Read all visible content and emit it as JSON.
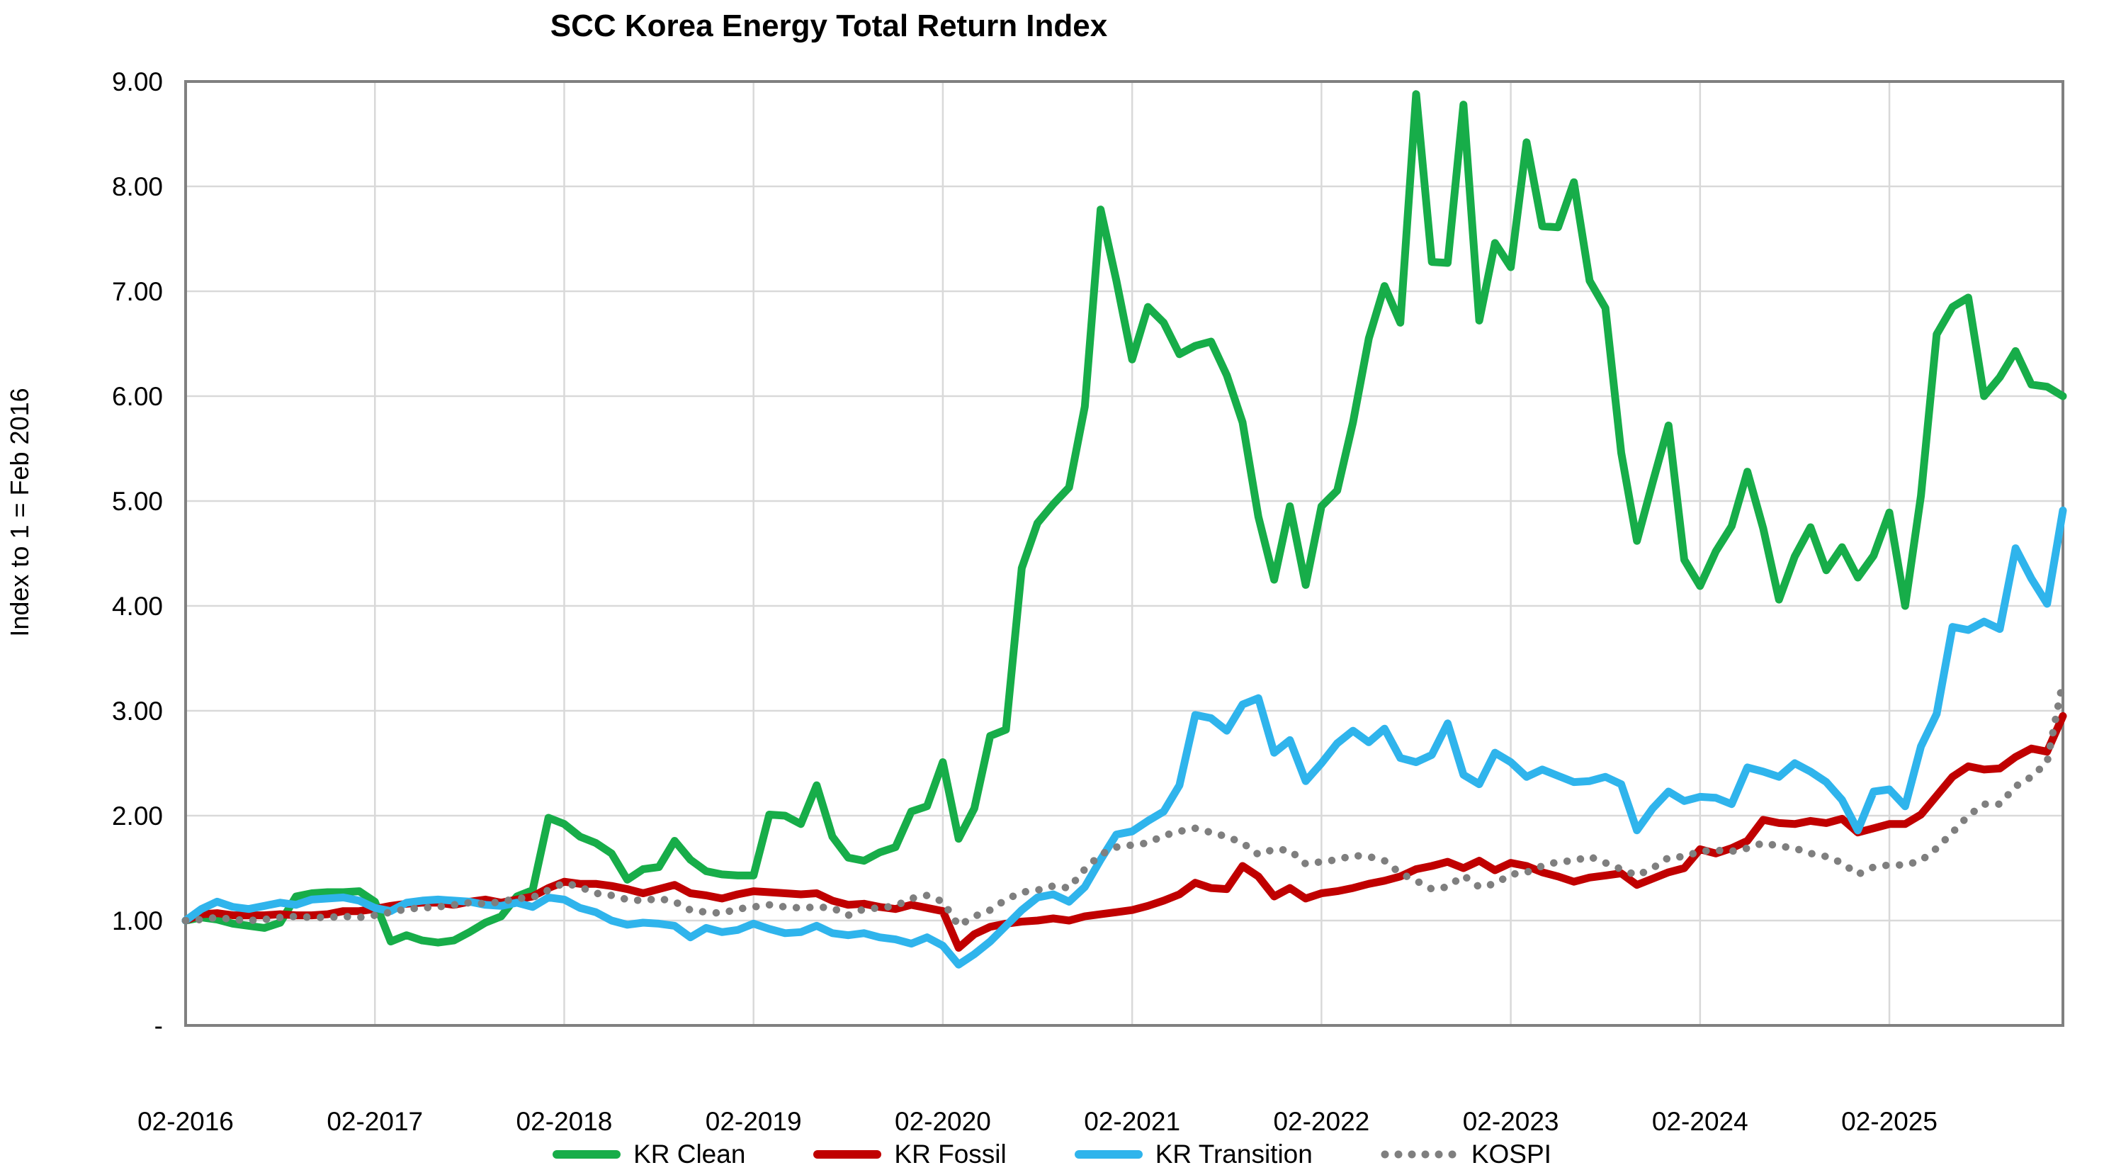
{
  "title": "SCC Korea Energy Total Return Index",
  "y_axis": {
    "title": "Index to 1 = Feb 2016",
    "tick_labels": [
      "-",
      "1.00",
      "2.00",
      "3.00",
      "4.00",
      "5.00",
      "6.00",
      "7.00",
      "8.00",
      "9.00"
    ],
    "min": 0,
    "max": 9,
    "step": 1
  },
  "x_axis": {
    "tick_labels": [
      "02-2016",
      "02-2017",
      "02-2018",
      "02-2019",
      "02-2020",
      "02-2021",
      "02-2022",
      "02-2023",
      "02-2024",
      "02-2025"
    ],
    "months_per_tick": 12,
    "n_points": 120
  },
  "legend": [
    {
      "label": "KR Clean",
      "color": "#17AD49",
      "style": "solid"
    },
    {
      "label": "KR Fossil",
      "color": "#C00000",
      "style": "solid"
    },
    {
      "label": "KR Transition",
      "color": "#2FB4EC",
      "style": "solid"
    },
    {
      "label": "KOSPI",
      "color": "#7F7F7F",
      "style": "dotted"
    }
  ],
  "colors": {
    "grid": "#D9D9D9",
    "axis_border": "#808080",
    "text": "#000000",
    "background": "#FFFFFF"
  },
  "chart_data": {
    "type": "line",
    "title": "SCC Korea Energy Total Return Index",
    "xlabel": "",
    "ylabel": "Index to 1 = Feb 2016",
    "ylim": [
      0,
      9
    ],
    "grid": true,
    "legend_position": "bottom",
    "x_start": "02-2016",
    "x_end": "01-2026",
    "x_frequency": "monthly",
    "series": [
      {
        "name": "KR Clean",
        "color": "#17AD49",
        "style": "solid",
        "values": [
          1.0,
          1.03,
          1.01,
          0.97,
          0.95,
          0.93,
          0.98,
          1.23,
          1.26,
          1.27,
          1.27,
          1.28,
          1.18,
          0.8,
          0.86,
          0.81,
          0.79,
          0.81,
          0.89,
          0.98,
          1.04,
          1.23,
          1.29,
          1.98,
          1.92,
          1.8,
          1.74,
          1.64,
          1.39,
          1.49,
          1.51,
          1.76,
          1.58,
          1.47,
          1.44,
          1.43,
          1.43,
          2.01,
          2.0,
          1.92,
          2.29,
          1.8,
          1.6,
          1.57,
          1.65,
          1.7,
          2.04,
          2.09,
          2.51,
          1.78,
          2.07,
          2.76,
          2.82,
          4.36,
          4.79,
          4.97,
          5.13,
          5.9,
          7.78,
          7.1,
          6.35,
          6.85,
          6.7,
          6.4,
          6.48,
          6.52,
          6.2,
          5.75,
          4.85,
          4.25,
          4.95,
          4.2,
          4.95,
          5.1,
          5.75,
          6.55,
          7.05,
          6.7,
          8.88,
          7.28,
          7.27,
          8.78,
          6.72,
          7.46,
          7.23,
          8.42,
          7.62,
          7.61,
          8.04,
          7.1,
          6.84,
          5.46,
          4.62,
          5.18,
          5.72,
          4.44,
          4.19,
          4.52,
          4.76,
          5.28,
          4.74,
          4.06,
          4.47,
          4.75,
          4.34,
          4.56,
          4.27,
          4.48,
          4.89,
          4.0,
          5.05,
          6.59,
          6.85,
          6.94,
          6.0,
          6.18,
          6.43,
          6.11,
          6.09,
          6.0
        ]
      },
      {
        "name": "KR Fossil",
        "color": "#C00000",
        "style": "solid",
        "values": [
          1.0,
          1.06,
          1.07,
          1.05,
          1.05,
          1.05,
          1.06,
          1.05,
          1.05,
          1.06,
          1.09,
          1.09,
          1.11,
          1.14,
          1.16,
          1.17,
          1.17,
          1.15,
          1.18,
          1.2,
          1.17,
          1.2,
          1.23,
          1.31,
          1.37,
          1.35,
          1.35,
          1.33,
          1.3,
          1.26,
          1.3,
          1.34,
          1.26,
          1.24,
          1.21,
          1.25,
          1.28,
          1.27,
          1.26,
          1.25,
          1.26,
          1.19,
          1.15,
          1.16,
          1.13,
          1.11,
          1.15,
          1.12,
          1.09,
          0.74,
          0.87,
          0.94,
          0.97,
          0.99,
          1.0,
          1.02,
          1.0,
          1.04,
          1.06,
          1.08,
          1.1,
          1.14,
          1.19,
          1.25,
          1.36,
          1.31,
          1.3,
          1.52,
          1.42,
          1.23,
          1.31,
          1.21,
          1.26,
          1.28,
          1.31,
          1.35,
          1.38,
          1.42,
          1.49,
          1.52,
          1.56,
          1.5,
          1.57,
          1.48,
          1.55,
          1.52,
          1.46,
          1.42,
          1.37,
          1.41,
          1.43,
          1.45,
          1.34,
          1.4,
          1.46,
          1.5,
          1.68,
          1.64,
          1.69,
          1.76,
          1.96,
          1.93,
          1.92,
          1.95,
          1.93,
          1.97,
          1.84,
          1.88,
          1.92,
          1.92,
          2.01,
          2.19,
          2.37,
          2.47,
          2.44,
          2.45,
          2.56,
          2.64,
          2.61,
          2.95
        ]
      },
      {
        "name": "KR Transition",
        "color": "#2FB4EC",
        "style": "solid",
        "values": [
          1.0,
          1.11,
          1.18,
          1.13,
          1.11,
          1.14,
          1.17,
          1.15,
          1.2,
          1.21,
          1.22,
          1.19,
          1.12,
          1.09,
          1.17,
          1.19,
          1.2,
          1.19,
          1.18,
          1.15,
          1.14,
          1.17,
          1.13,
          1.22,
          1.2,
          1.12,
          1.08,
          1.0,
          0.96,
          0.98,
          0.97,
          0.95,
          0.84,
          0.93,
          0.89,
          0.91,
          0.97,
          0.92,
          0.88,
          0.89,
          0.95,
          0.88,
          0.86,
          0.88,
          0.84,
          0.82,
          0.78,
          0.84,
          0.76,
          0.58,
          0.68,
          0.8,
          0.95,
          1.1,
          1.22,
          1.25,
          1.18,
          1.32,
          1.58,
          1.82,
          1.85,
          1.95,
          2.04,
          2.29,
          2.96,
          2.93,
          2.81,
          3.06,
          3.12,
          2.6,
          2.72,
          2.33,
          2.5,
          2.69,
          2.81,
          2.7,
          2.83,
          2.55,
          2.51,
          2.58,
          2.88,
          2.39,
          2.3,
          2.6,
          2.51,
          2.37,
          2.44,
          2.38,
          2.32,
          2.33,
          2.37,
          2.3,
          1.86,
          2.07,
          2.23,
          2.14,
          2.18,
          2.17,
          2.11,
          2.46,
          2.42,
          2.37,
          2.5,
          2.42,
          2.32,
          2.15,
          1.86,
          2.23,
          2.25,
          2.09,
          2.66,
          2.97,
          3.8,
          3.77,
          3.85,
          3.78,
          4.55,
          4.26,
          4.02,
          4.91
        ]
      },
      {
        "name": "KOSPI",
        "color": "#7F7F7F",
        "style": "dotted",
        "values": [
          1.0,
          1.01,
          1.03,
          1.01,
          1.0,
          1.01,
          1.03,
          1.04,
          1.03,
          1.03,
          1.04,
          1.03,
          1.05,
          1.08,
          1.11,
          1.12,
          1.13,
          1.15,
          1.17,
          1.16,
          1.18,
          1.21,
          1.22,
          1.29,
          1.36,
          1.32,
          1.26,
          1.24,
          1.2,
          1.19,
          1.21,
          1.18,
          1.1,
          1.08,
          1.07,
          1.11,
          1.13,
          1.15,
          1.13,
          1.12,
          1.13,
          1.12,
          1.05,
          1.11,
          1.12,
          1.14,
          1.21,
          1.24,
          1.18,
          0.95,
          1.04,
          1.1,
          1.2,
          1.27,
          1.29,
          1.33,
          1.31,
          1.49,
          1.63,
          1.7,
          1.72,
          1.74,
          1.81,
          1.85,
          1.88,
          1.84,
          1.8,
          1.74,
          1.63,
          1.68,
          1.67,
          1.54,
          1.56,
          1.58,
          1.62,
          1.61,
          1.57,
          1.45,
          1.38,
          1.3,
          1.32,
          1.43,
          1.32,
          1.35,
          1.44,
          1.46,
          1.52,
          1.56,
          1.57,
          1.61,
          1.55,
          1.49,
          1.43,
          1.5,
          1.6,
          1.61,
          1.66,
          1.67,
          1.66,
          1.69,
          1.74,
          1.71,
          1.69,
          1.64,
          1.61,
          1.55,
          1.44,
          1.51,
          1.53,
          1.53,
          1.57,
          1.69,
          1.84,
          2.0,
          2.11,
          2.11,
          2.28,
          2.37,
          2.51,
          3.28
        ]
      }
    ]
  }
}
